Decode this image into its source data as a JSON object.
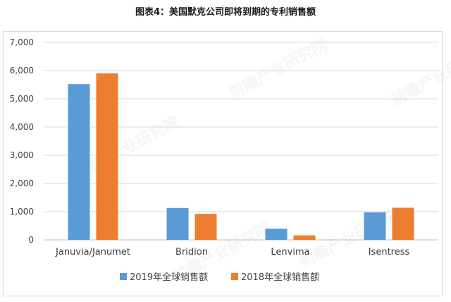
{
  "title": "图表4：美国默克公司即将到期的专利销售额",
  "watermark_text": "前瞻产业研究院",
  "chart_data": {
    "type": "bar",
    "categories": [
      "Januvia/Janumet",
      "Bridion",
      "Lenvima",
      "Isentress"
    ],
    "series": [
      {
        "name": "2019年全球销售额",
        "values": [
          5520,
          1130,
          400,
          975
        ],
        "color": "#5b9bd5"
      },
      {
        "name": "2018年全球销售额",
        "values": [
          5900,
          920,
          160,
          1140
        ],
        "color": "#ed7d31"
      }
    ],
    "ylim": [
      0,
      7000
    ],
    "yticks": [
      "0",
      "1,000",
      "2,000",
      "3,000",
      "4,000",
      "5,000",
      "6,000",
      "7,000"
    ],
    "ytick_values": [
      0,
      1000,
      2000,
      3000,
      4000,
      5000,
      6000,
      7000
    ],
    "grid": true,
    "legend_position": "bottom"
  }
}
